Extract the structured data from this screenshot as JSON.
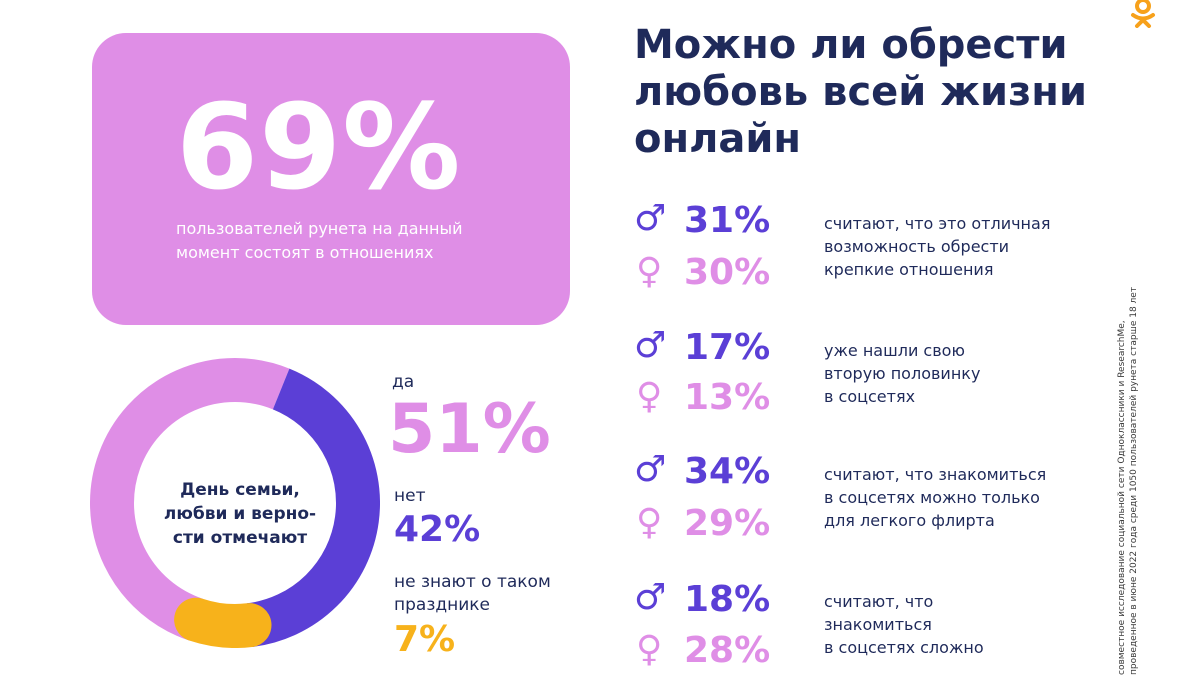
{
  "card": {
    "percent": "69%",
    "caption_line1": "пользователей рунета на данный",
    "caption_line2": "момент состоят в отношениях"
  },
  "title": {
    "line1": "Можно ли обрести",
    "line2": "любовь всей жизни",
    "line3": "онлайн"
  },
  "donut": {
    "label_line1": "День семьи,",
    "label_line2": "любви и верно-",
    "label_line3": "сти отмечают"
  },
  "chart_data": {
    "type": "pie",
    "title": "День семьи, любви и верности отмечают",
    "categories": [
      "да",
      "нет",
      "не знают о таком празднике"
    ],
    "values": [
      51,
      42,
      7
    ],
    "value_labels": [
      "51%",
      "42%",
      "7%"
    ],
    "colors": [
      "#df8ee6",
      "#5b3fd6",
      "#f7b21b"
    ],
    "label_no_line2": "празднике"
  },
  "legend": {
    "yes_label": "да",
    "no_label": "нет",
    "unknown_label_line1": "не знают о таком",
    "unknown_label_line2": "празднике"
  },
  "stats": [
    {
      "male": "31%",
      "female": "30%",
      "desc": [
        "считают, что это отличная",
        "возможность обрести",
        "крепкие отношения"
      ]
    },
    {
      "male": "17%",
      "female": "13%",
      "desc": [
        "уже нашли свою",
        "вторую половинку",
        "в соцсетях"
      ]
    },
    {
      "male": "34%",
      "female": "29%",
      "desc": [
        "считают, что знакомиться",
        "в соцсетях можно только",
        "для легкого флирта"
      ]
    },
    {
      "male": "18%",
      "female": "28%",
      "desc": [
        "считают, что",
        "знакомиться",
        "в соцсетях сложно"
      ]
    }
  ],
  "icons": {
    "male": "male-symbol-icon",
    "female": "female-symbol-icon",
    "logo": "ok-logo-icon"
  },
  "footnote": {
    "line1": "совместное исследование социальной сети Одноклассники и ResearchMe,",
    "line2": "проведенное в июне 2022 года среди 1050 пользователей рунета старше 18 лет"
  }
}
